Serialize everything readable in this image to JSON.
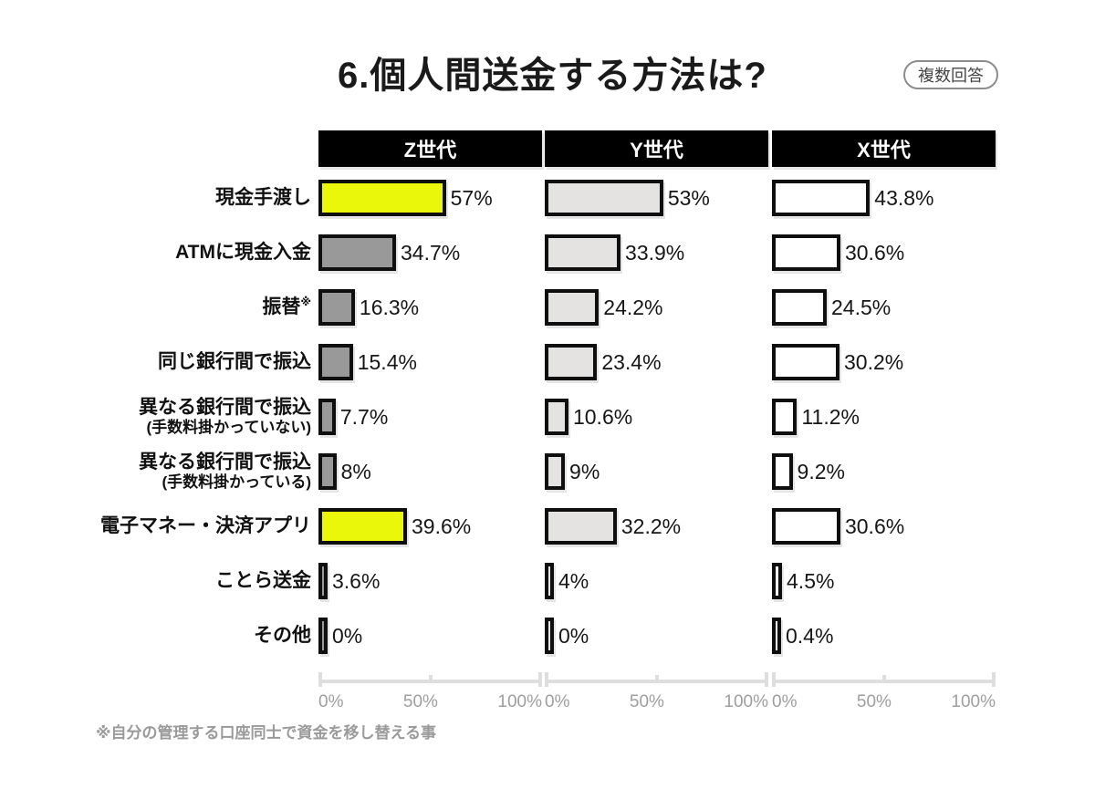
{
  "title": "6.個人間送金する方法は?",
  "badge": "複数回答",
  "footnote": "※自分の管理する口座同士で資金を移し替える事",
  "chart_data": {
    "type": "bar",
    "orientation": "horizontal",
    "axis_ticks": [
      "0%",
      "50%",
      "100%"
    ],
    "xlim": [
      0,
      100
    ],
    "grid": false,
    "categories": [
      {
        "label": "現金手渡し"
      },
      {
        "label": "ATMに現金入金"
      },
      {
        "label": "振替",
        "sup": "※"
      },
      {
        "label": "同じ銀行間で振込"
      },
      {
        "label": "異なる銀行間で振込",
        "label2": "(手数料掛かっていない)"
      },
      {
        "label": "異なる銀行間で振込",
        "label2": "(手数料掛かっている)"
      },
      {
        "label": "電子マネー・決済アプリ"
      },
      {
        "label": "ことら送金"
      },
      {
        "label": "その他"
      }
    ],
    "series": [
      {
        "name": "Z世代",
        "values": [
          57,
          34.7,
          16.3,
          15.4,
          7.7,
          8,
          39.6,
          3.6,
          0
        ],
        "display": [
          "57%",
          "34.7%",
          "16.3%",
          "15.4%",
          "7.7%",
          "8%",
          "39.6%",
          "3.6%",
          "0%"
        ],
        "bar_color": "#999999",
        "highlight_color": "#eaf70a",
        "highlight_rows": [
          0,
          6
        ]
      },
      {
        "name": "Y世代",
        "values": [
          53,
          33.9,
          24.2,
          23.4,
          10.6,
          9,
          32.2,
          4,
          0
        ],
        "display": [
          "53%",
          "33.9%",
          "24.2%",
          "23.4%",
          "10.6%",
          "9%",
          "32.2%",
          "4%",
          "0%"
        ],
        "bar_color": "#e4e3e1"
      },
      {
        "name": "X世代",
        "values": [
          43.8,
          30.6,
          24.5,
          30.2,
          11.2,
          9.2,
          30.6,
          4.5,
          0.4
        ],
        "display": [
          "43.8%",
          "30.6%",
          "24.5%",
          "30.2%",
          "11.2%",
          "9.2%",
          "30.6%",
          "4.5%",
          "0.4%"
        ],
        "bar_color": "#ffffff"
      }
    ],
    "colors": {
      "bar_border": "#0f0f0f",
      "header_bg": "#000000",
      "header_text": "#ffffff",
      "highlight": "#eaf70a",
      "axis": "#dedede",
      "axis_label": "#9e9e9e"
    }
  }
}
